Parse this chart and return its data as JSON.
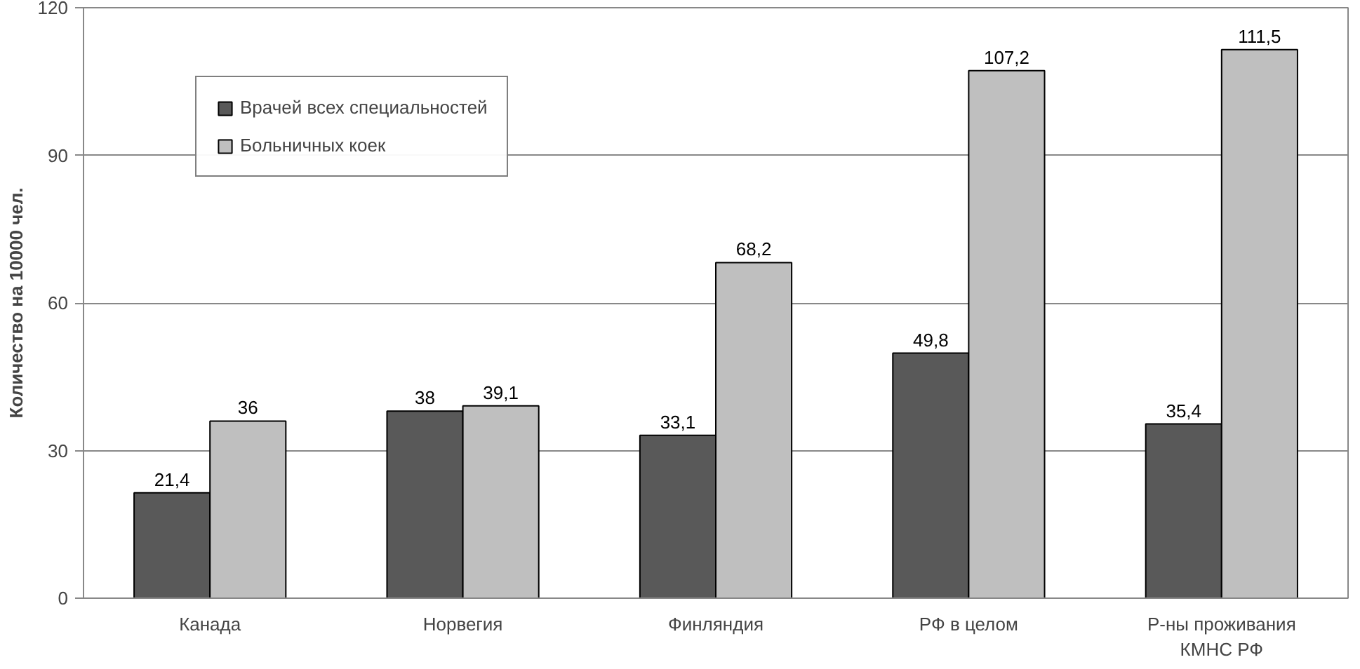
{
  "chart_data": {
    "type": "bar",
    "ylabel": "Количество на 10000 чел.",
    "categories": [
      "Канада",
      "Норвегия",
      "Финляндия",
      "РФ в целом",
      "Р-ны проживания\nКМНС РФ"
    ],
    "series": [
      {
        "name": "Врачей всех специальностей",
        "color": "#595959",
        "values": [
          21.4,
          38,
          33.1,
          49.8,
          35.4
        ],
        "value_labels": [
          "21,4",
          "38",
          "33,1",
          "49,8",
          "35,4"
        ]
      },
      {
        "name": "Больничных коек",
        "color": "#bfbfbf",
        "values": [
          36,
          39.1,
          68.2,
          107.2,
          111.5
        ],
        "value_labels": [
          "36",
          "39,1",
          "68,2",
          "107,2",
          "111,5"
        ]
      }
    ],
    "ylim": [
      0,
      120
    ],
    "yticks": [
      0,
      30,
      60,
      90,
      120
    ],
    "grid": "y",
    "legend": "top left"
  }
}
